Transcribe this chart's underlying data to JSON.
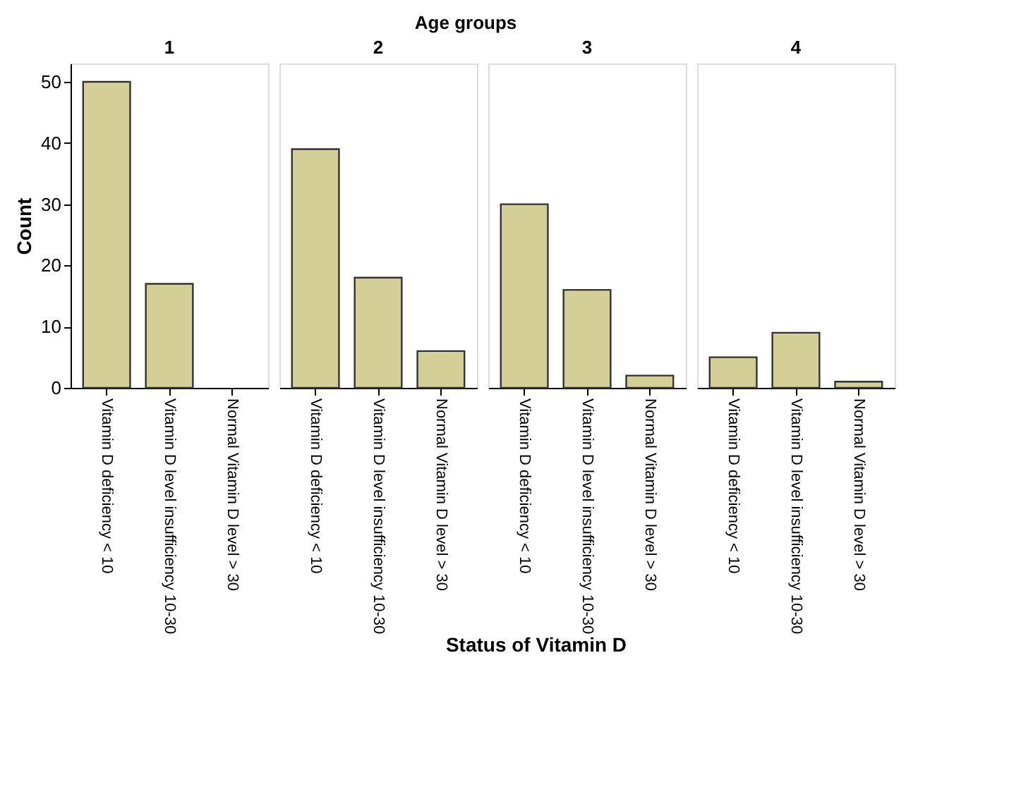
{
  "chart_data": [
    {
      "type": "bar",
      "title": "1",
      "ylabel": "Count",
      "annotations": [
        "Age groups",
        "Status of Vitamin D"
      ],
      "categories": [
        "Vitamin D deficiency < 10",
        "Vitamin D level insufficiency 10-30",
        "Normal Vitamin D level > 30"
      ],
      "values": [
        50,
        17,
        0
      ],
      "color": "#d3cf96",
      "ylim": [
        0,
        53
      ],
      "yticks": [
        0,
        10,
        20,
        30,
        40,
        50
      ],
      "grid": false
    },
    {
      "type": "bar",
      "title": "2",
      "categories": [
        "Vitamin D deficiency < 10",
        "Vitamin D level insufficiency 10-30",
        "Normal Vitamin D level > 30"
      ],
      "values": [
        39,
        18,
        6
      ],
      "color": "#d3cf96",
      "ylim": [
        0,
        53
      ],
      "yticks": [
        0,
        10,
        20,
        30,
        40,
        50
      ],
      "tick_labels": "x",
      "grid": false
    },
    {
      "type": "bar",
      "title": "3",
      "categories": [
        "Vitamin D deficiency < 10",
        "Vitamin D level insufficiency 10-30",
        "Normal Vitamin D level > 30"
      ],
      "values": [
        30,
        16,
        2
      ],
      "color": "#d3cf96",
      "ylim": [
        0,
        53
      ],
      "yticks": [
        0,
        10,
        20,
        30,
        40,
        50
      ],
      "tick_labels": "x",
      "grid": false
    },
    {
      "type": "bar",
      "title": "4",
      "categories": [
        "Vitamin D deficiency < 10",
        "Vitamin D level insufficiency 10-30",
        "Normal Vitamin D level > 30"
      ],
      "values": [
        5,
        9,
        1
      ],
      "color": "#d3cf96",
      "ylim": [
        0,
        53
      ],
      "yticks": [
        0,
        10,
        20,
        30,
        40,
        50
      ],
      "tick_labels": "x",
      "grid": false
    }
  ]
}
